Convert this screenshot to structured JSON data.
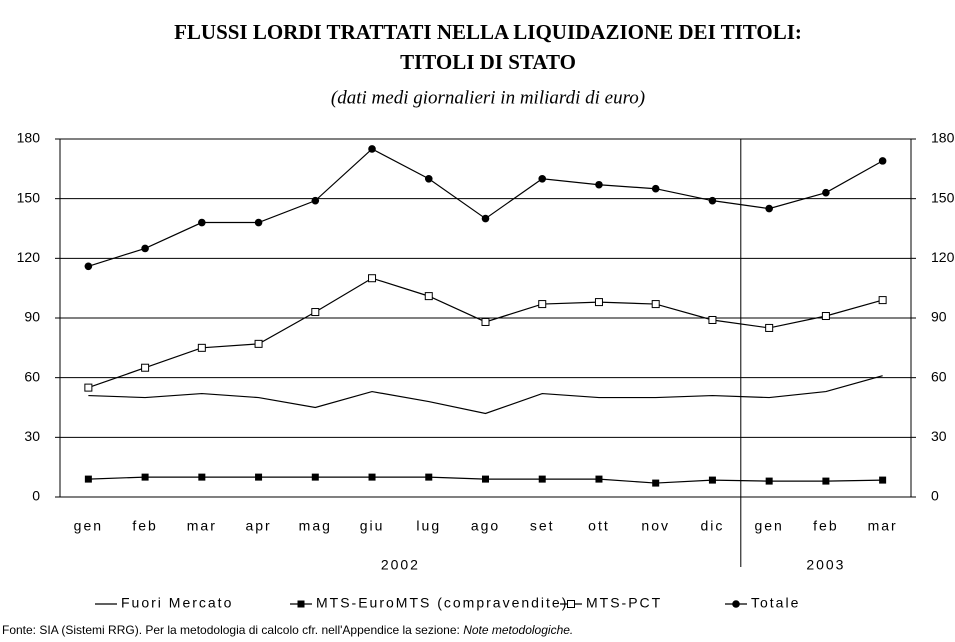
{
  "chart_data": {
    "type": "line",
    "title": [
      "FLUSSI LORDI TRATTATI NELLA LIQUIDAZIONE DEI TITOLI:",
      "TITOLI DI STATO"
    ],
    "subtitle": "(dati medi giornalieri in miliardi di euro)",
    "categories": [
      "gen",
      "feb",
      "mar",
      "apr",
      "mag",
      "giu",
      "lug",
      "ago",
      "set",
      "ott",
      "nov",
      "dic",
      "gen",
      "feb",
      "mar"
    ],
    "year_groups": [
      {
        "label": "2002",
        "count": 12
      },
      {
        "label": "2003",
        "count": 3
      }
    ],
    "series": [
      {
        "name": "Fuori Mercato",
        "color": "#000000",
        "marker": "none",
        "values": [
          51,
          50,
          52,
          50,
          45,
          53,
          48,
          42,
          52,
          50,
          50,
          51,
          50,
          53,
          61
        ]
      },
      {
        "name": "MTS-EuroMTS (compravendite)",
        "color": "#000000",
        "marker": "filled-square",
        "values": [
          9,
          10,
          10,
          10,
          10,
          10,
          10,
          9,
          9,
          9,
          7,
          8.5,
          8,
          8,
          8.5
        ]
      },
      {
        "name": "MTS-PCT",
        "color": "#000000",
        "marker": "open-square",
        "values": [
          55,
          65,
          75,
          77,
          93,
          110,
          101,
          88,
          97,
          98,
          97,
          89,
          85,
          91,
          99
        ]
      },
      {
        "name": "Totale",
        "color": "#000000",
        "marker": "filled-circle",
        "values": [
          116,
          125,
          138,
          138,
          149,
          175,
          160,
          140,
          160,
          157,
          155,
          149,
          145,
          153,
          169
        ]
      }
    ],
    "ylim": [
      0,
      180
    ],
    "yticks": [
      0,
      30,
      60,
      90,
      120,
      150,
      180
    ],
    "y2lim": [
      0,
      180
    ],
    "y2ticks": [
      0,
      30,
      60,
      90,
      120,
      150,
      180
    ],
    "grid": true,
    "legend": "bottom",
    "source": "Fonte: SIA (Sistemi RRG). Per la metodologia di calcolo cfr. nell'Appendice la sezione: ",
    "source_note": "Note metodologiche."
  }
}
